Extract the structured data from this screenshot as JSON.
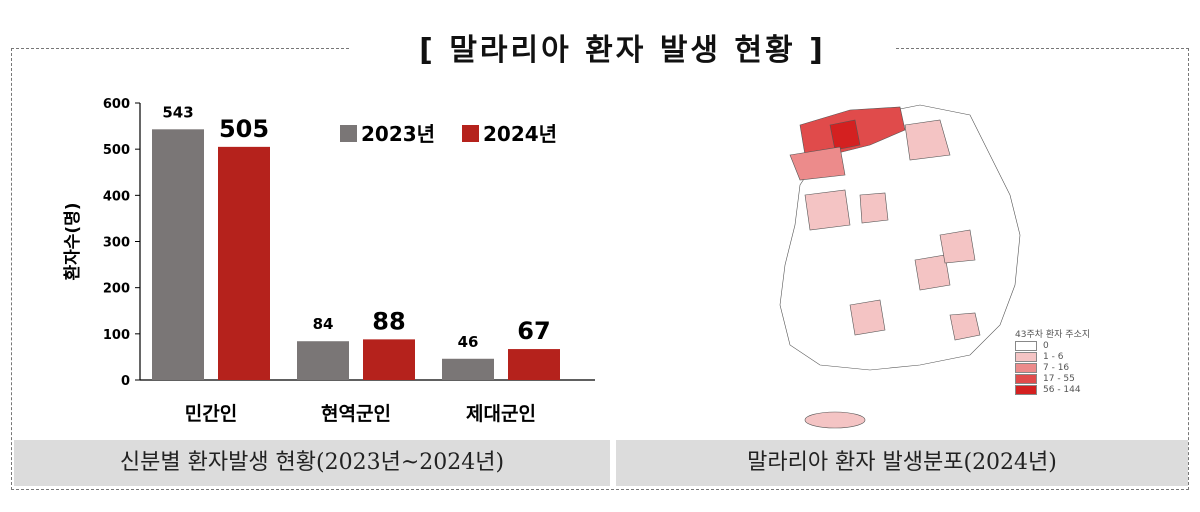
{
  "title": "[ 말라리아 환자 발생 현황 ]",
  "chart_data": {
    "type": "bar",
    "title": "",
    "categories": [
      "민간인",
      "현역군인",
      "제대군인"
    ],
    "series": [
      {
        "name": "2023년",
        "values": [
          543,
          84,
          46
        ],
        "color": "#7a7676"
      },
      {
        "name": "2024년",
        "values": [
          505,
          88,
          67
        ],
        "color": "#b5221c"
      }
    ],
    "xlabel": "",
    "ylabel": "환자수(명)",
    "ylim": [
      0,
      600
    ],
    "yticks": [
      0,
      100,
      200,
      300,
      400,
      500,
      600
    ],
    "grid": false,
    "legend_position": "top-right"
  },
  "map": {
    "legend_title": "43주차 환자 주소지",
    "legend_items": [
      {
        "label": "0",
        "color": "#ffffff"
      },
      {
        "label": "1 - 6",
        "color": "#f4c4c4"
      },
      {
        "label": "7 - 16",
        "color": "#ec8b8b"
      },
      {
        "label": "17 - 55",
        "color": "#e04b4b"
      },
      {
        "label": "56 - 144",
        "color": "#d42020"
      }
    ]
  },
  "captions": {
    "left": "신분별 환자발생 현황(2023년~2024년)",
    "right": "말라리아 환자 발생분포(2024년)"
  }
}
